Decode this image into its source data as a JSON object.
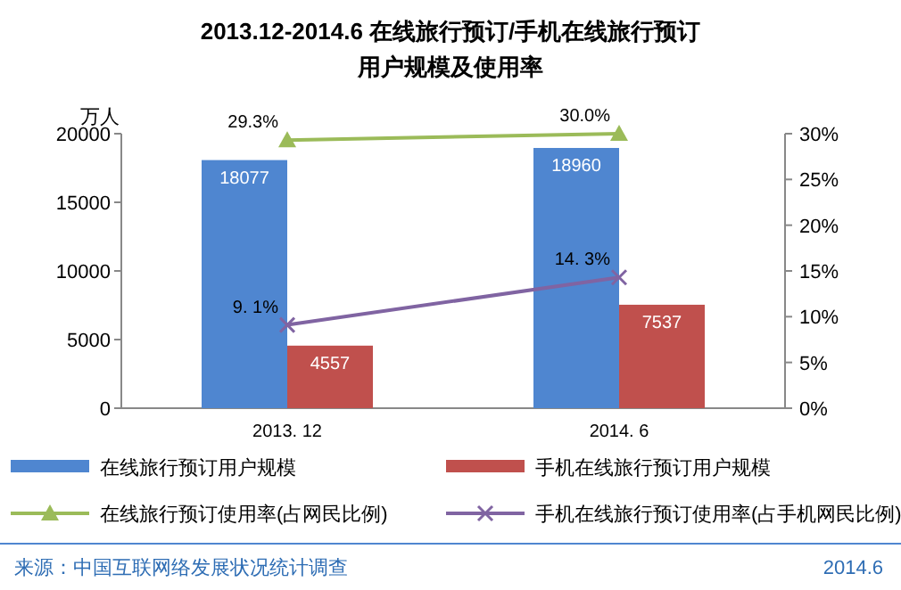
{
  "chart_data": {
    "type": "bar",
    "title": "2013.12-2014.6  在线旅行预订/手机在线旅行预订",
    "subtitle": "用户规模及使用率",
    "ylabel": "万人",
    "categories": [
      "2013. 12",
      "2014. 6"
    ],
    "series": [
      {
        "name": "在线旅行预订用户规模",
        "color": "#4f86d0",
        "values": [
          18077,
          18960
        ],
        "value_labels": [
          "18077",
          "18960"
        ]
      },
      {
        "name": "手机在线旅行预订用户规模",
        "color": "#c0504d",
        "values": [
          4557,
          7537
        ],
        "value_labels": [
          "4557",
          "7537"
        ]
      },
      {
        "name": "在线旅行预订使用率(占网民比例)",
        "type": "line",
        "axis": "y2",
        "marker": "triangle",
        "color": "#9bbb59",
        "values": [
          29.3,
          30.0
        ],
        "value_labels": [
          "29.3%",
          "30.0%"
        ]
      },
      {
        "name": "手机在线旅行预订使用率(占手机网民比例)",
        "type": "line",
        "axis": "y2",
        "marker": "cross",
        "color": "#8064a2",
        "values": [
          9.1,
          14.3
        ],
        "value_labels": [
          "9. 1%",
          "14. 3%"
        ]
      }
    ],
    "ylim": [
      0,
      20000
    ],
    "yticks": [
      0,
      5000,
      10000,
      15000,
      20000
    ],
    "y2lim": [
      0,
      30
    ],
    "y2ticks": [
      {
        "value": 0,
        "label": "0%"
      },
      {
        "value": 5,
        "label": "5%"
      },
      {
        "value": 10,
        "label": "10%"
      },
      {
        "value": 15,
        "label": "15%"
      },
      {
        "value": 20,
        "label": "20%"
      },
      {
        "value": 25,
        "label": "25%"
      },
      {
        "value": 30,
        "label": "30%"
      }
    ],
    "legend": "bottom",
    "grid": false,
    "annotations": [
      "来源：中国互联网络发展状况统计调查",
      "2014.6"
    ]
  }
}
